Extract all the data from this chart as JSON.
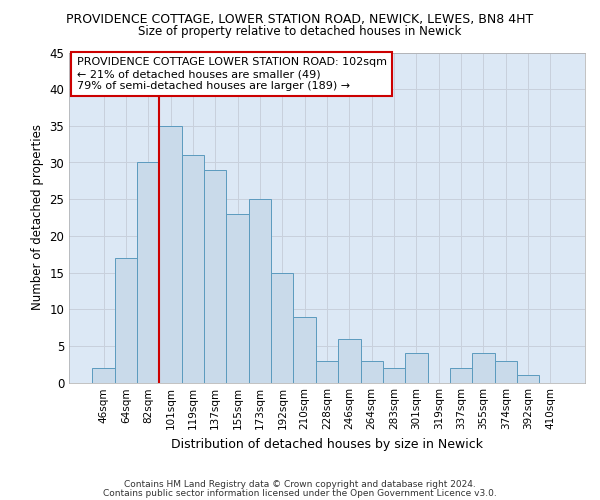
{
  "title": "PROVIDENCE COTTAGE, LOWER STATION ROAD, NEWICK, LEWES, BN8 4HT",
  "subtitle": "Size of property relative to detached houses in Newick",
  "xlabel": "Distribution of detached houses by size in Newick",
  "ylabel": "Number of detached properties",
  "bar_color": "#c9daea",
  "bar_edgecolor": "#5b9abe",
  "grid_color": "#c8d0dc",
  "plot_bg_color": "#dce8f5",
  "fig_bg_color": "#ffffff",
  "annotation_text": "PROVIDENCE COTTAGE LOWER STATION ROAD: 102sqm\n← 21% of detached houses are smaller (49)\n79% of semi-detached houses are larger (189) →",
  "annotation_box_edgecolor": "#cc0000",
  "annotation_box_facecolor": "#ffffff",
  "vline_color": "#cc0000",
  "categories": [
    "46sqm",
    "64sqm",
    "82sqm",
    "101sqm",
    "119sqm",
    "137sqm",
    "155sqm",
    "173sqm",
    "192sqm",
    "210sqm",
    "228sqm",
    "246sqm",
    "264sqm",
    "283sqm",
    "301sqm",
    "319sqm",
    "337sqm",
    "355sqm",
    "374sqm",
    "392sqm",
    "410sqm"
  ],
  "values": [
    2,
    17,
    30,
    35,
    31,
    29,
    23,
    25,
    15,
    9,
    3,
    6,
    3,
    2,
    4,
    0,
    2,
    4,
    3,
    1,
    0
  ],
  "red_line_index": 3,
  "ylim": [
    0,
    45
  ],
  "yticks": [
    0,
    5,
    10,
    15,
    20,
    25,
    30,
    35,
    40,
    45
  ],
  "footer_line1": "Contains HM Land Registry data © Crown copyright and database right 2024.",
  "footer_line2": "Contains public sector information licensed under the Open Government Licence v3.0."
}
